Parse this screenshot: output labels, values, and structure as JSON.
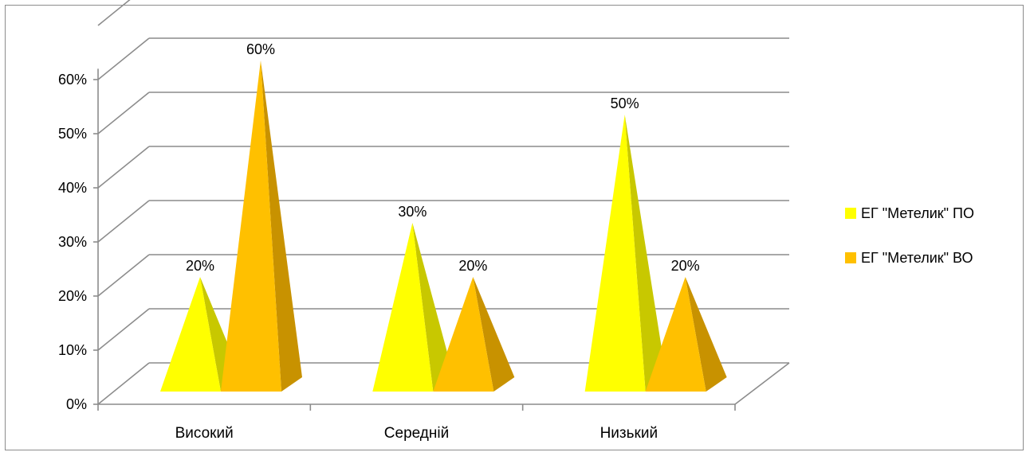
{
  "chart_data": {
    "type": "bar",
    "shape": "3d-pyramid",
    "categories": [
      "Високий",
      "Середній",
      "Низький"
    ],
    "series": [
      {
        "name": "ЕГ \"Метелик\" ПО",
        "values": [
          20,
          30,
          50
        ],
        "color": "#FFFF00",
        "side_color": "#C8C800"
      },
      {
        "name": "ЕГ \"Метелик\" ВО",
        "values": [
          60,
          20,
          20
        ],
        "color": "#FFC000",
        "side_color": "#C89200"
      }
    ],
    "data_labels": [
      [
        "20%",
        "30%",
        "50%"
      ],
      [
        "60%",
        "20%",
        "20%"
      ]
    ],
    "y_ticks": [
      "0%",
      "10%",
      "20%",
      "30%",
      "40%",
      "50%",
      "60%"
    ],
    "ylim": [
      0,
      60
    ],
    "grid": true,
    "legend_position": "right",
    "title": "",
    "xlabel": "",
    "ylabel": ""
  }
}
